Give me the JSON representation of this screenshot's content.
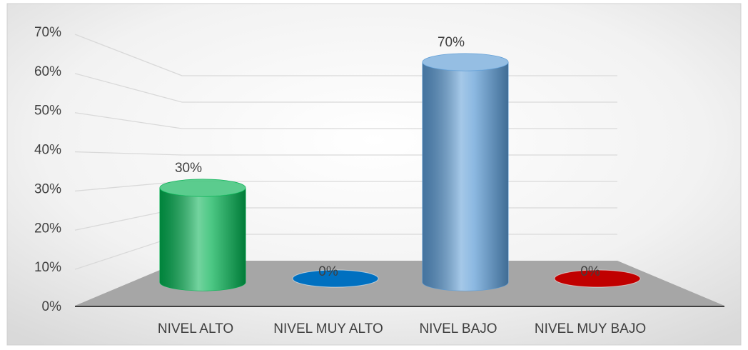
{
  "chart_data": {
    "type": "bar3d",
    "categories": [
      "NIVEL ALTO",
      "NIVEL MUY ALTO",
      "NIVEL BAJO",
      "NIVEL MUY BAJO"
    ],
    "values": [
      30,
      0,
      70,
      0
    ],
    "value_labels": [
      "30%",
      "0%",
      "70%",
      "0%"
    ],
    "colors": [
      "#00b050",
      "#0070c0",
      "#5b9bd5",
      "#c00000"
    ],
    "ylim": [
      0,
      70
    ],
    "yticks": [
      {
        "value": 0,
        "label": "0%"
      },
      {
        "value": 10,
        "label": "10%"
      },
      {
        "value": 20,
        "label": "20%"
      },
      {
        "value": 30,
        "label": "30%"
      },
      {
        "value": 40,
        "label": "40%"
      },
      {
        "value": 50,
        "label": "50%"
      },
      {
        "value": 60,
        "label": "60%"
      },
      {
        "value": 70,
        "label": "70%"
      }
    ],
    "grid": true
  }
}
